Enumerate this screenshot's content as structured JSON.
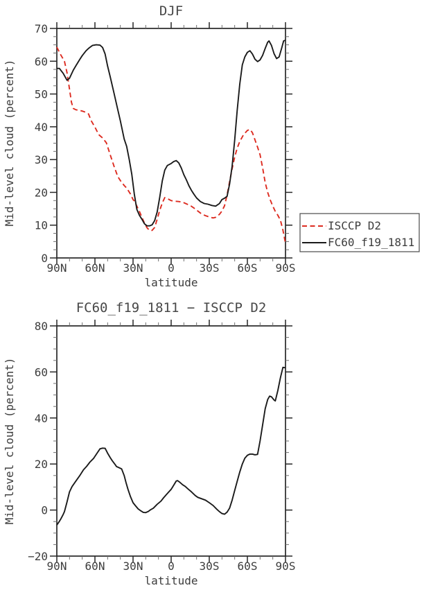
{
  "page": {
    "background": "#ffffff",
    "text_color": "#3d3d3d",
    "frame_color": "#262626"
  },
  "chart_data": [
    {
      "type": "line",
      "title": "DJF",
      "xlabel": "latitude",
      "ylabel": "Mid-level cloud (percent)",
      "ylim": [
        0,
        70
      ],
      "xlim_lat": [
        90,
        -90
      ],
      "grid": false,
      "legend_position": "outside-right",
      "yticks": [
        {
          "v": 0,
          "label": "0"
        },
        {
          "v": 10,
          "label": "10"
        },
        {
          "v": 20,
          "label": "20"
        },
        {
          "v": 30,
          "label": "30"
        },
        {
          "v": 40,
          "label": "40"
        },
        {
          "v": 50,
          "label": "50"
        },
        {
          "v": 60,
          "label": "60"
        },
        {
          "v": 70,
          "label": "70"
        }
      ],
      "yminor_step": 2.5,
      "xticks": [
        {
          "lat": 90,
          "label": "90N"
        },
        {
          "lat": 60,
          "label": "60N"
        },
        {
          "lat": 30,
          "label": "30N"
        },
        {
          "lat": 0,
          "label": "0"
        },
        {
          "lat": -30,
          "label": "30S"
        },
        {
          "lat": -60,
          "label": "60S"
        },
        {
          "lat": -90,
          "label": "90S"
        }
      ],
      "xminor_step": 10,
      "series": [
        {
          "name": "ISCCP D2",
          "color": "#dd2b20",
          "dashed": true,
          "points": [
            [
              90,
              64.3
            ],
            [
              87,
              62
            ],
            [
              84,
              60
            ],
            [
              82,
              56.5
            ],
            [
              80,
              51.5
            ],
            [
              78.5,
              47.5
            ],
            [
              77,
              45.6
            ],
            [
              75,
              45.2
            ],
            [
              72,
              45
            ],
            [
              70,
              44.8
            ],
            [
              67,
              44.4
            ],
            [
              65,
              43.9
            ],
            [
              63,
              41.9
            ],
            [
              60,
              39.9
            ],
            [
              57,
              37.6
            ],
            [
              54,
              36.6
            ],
            [
              51,
              35.1
            ],
            [
              48,
              31.5
            ],
            [
              45,
              28
            ],
            [
              42,
              24.8
            ],
            [
              40,
              23.6
            ],
            [
              37,
              22.1
            ],
            [
              35,
              21.3
            ],
            [
              32,
              19.5
            ],
            [
              30,
              17.8
            ],
            [
              29,
              17.4
            ],
            [
              27,
              15.8
            ],
            [
              25,
              14.2
            ],
            [
              23,
              12.4
            ],
            [
              21,
              10.6
            ],
            [
              19,
              9.2
            ],
            [
              17,
              8.4
            ],
            [
              15,
              8.4
            ],
            [
              13,
              9.3
            ],
            [
              11,
              11.8
            ],
            [
              9,
              14.5
            ],
            [
              7,
              16.8
            ],
            [
              5,
              18.4
            ],
            [
              3,
              18.1
            ],
            [
              0,
              17.5
            ],
            [
              -3,
              17.3
            ],
            [
              -6,
              17.2
            ],
            [
              -9,
              17
            ],
            [
              -12,
              16.5
            ],
            [
              -15,
              16
            ],
            [
              -18,
              15.2
            ],
            [
              -21,
              14.3
            ],
            [
              -24,
              13.4
            ],
            [
              -27,
              12.9
            ],
            [
              -30,
              12.5
            ],
            [
              -33,
              12.2
            ],
            [
              -35,
              12.4
            ],
            [
              -38,
              13.3
            ],
            [
              -40,
              14.3
            ],
            [
              -42,
              15.9
            ],
            [
              -44,
              19.2
            ],
            [
              -46,
              23.2
            ],
            [
              -48,
              27.2
            ],
            [
              -50,
              30.8
            ],
            [
              -52,
              33.5
            ],
            [
              -54,
              35.5
            ],
            [
              -57,
              37.6
            ],
            [
              -60,
              38.9
            ],
            [
              -62,
              39.2
            ],
            [
              -64,
              38.2
            ],
            [
              -66,
              36
            ],
            [
              -68,
              33.8
            ],
            [
              -70,
              31.5
            ],
            [
              -72,
              27.5
            ],
            [
              -74,
              23
            ],
            [
              -76,
              20
            ],
            [
              -78,
              17.7
            ],
            [
              -80,
              15.8
            ],
            [
              -82,
              14.2
            ],
            [
              -84,
              13
            ],
            [
              -86,
              11.5
            ],
            [
              -88,
              8.5
            ],
            [
              -90,
              4.4
            ]
          ]
        },
        {
          "name": "FC60_f19_1811",
          "color": "#1a1a1a",
          "dashed": false,
          "points": [
            [
              90,
              57.8
            ],
            [
              88,
              57.8
            ],
            [
              85,
              56.3
            ],
            [
              82,
              54.2
            ],
            [
              80,
              54.8
            ],
            [
              77,
              57.3
            ],
            [
              75,
              58.6
            ],
            [
              72,
              60.5
            ],
            [
              70,
              61.7
            ],
            [
              67,
              63.2
            ],
            [
              65,
              63.9
            ],
            [
              62,
              64.8
            ],
            [
              59,
              65
            ],
            [
              56,
              64.9
            ],
            [
              54,
              64.2
            ],
            [
              52,
              62.2
            ],
            [
              50,
              58.5
            ],
            [
              48,
              55.3
            ],
            [
              45,
              50.3
            ],
            [
              42,
              45.2
            ],
            [
              40,
              41.8
            ],
            [
              37,
              36.3
            ],
            [
              35,
              34
            ],
            [
              33,
              30
            ],
            [
              31,
              25.5
            ],
            [
              29,
              19.5
            ],
            [
              27,
              14.8
            ],
            [
              25,
              13
            ],
            [
              23,
              11.8
            ],
            [
              21,
              10.4
            ],
            [
              19,
              9.8
            ],
            [
              17,
              9.8
            ],
            [
              15,
              10.1
            ],
            [
              13,
              11.4
            ],
            [
              11,
              14
            ],
            [
              9,
              18.5
            ],
            [
              7,
              23.5
            ],
            [
              5,
              26.8
            ],
            [
              3,
              28.2
            ],
            [
              0,
              28.8
            ],
            [
              -2,
              29.4
            ],
            [
              -4,
              29.7
            ],
            [
              -6,
              29
            ],
            [
              -8,
              27.4
            ],
            [
              -10,
              25.4
            ],
            [
              -12,
              23.8
            ],
            [
              -14,
              22
            ],
            [
              -16,
              20.6
            ],
            [
              -18,
              19.4
            ],
            [
              -20,
              18.3
            ],
            [
              -23,
              17.2
            ],
            [
              -26,
              16.6
            ],
            [
              -29,
              16.4
            ],
            [
              -32,
              16
            ],
            [
              -35,
              15.8
            ],
            [
              -38,
              16.6
            ],
            [
              -40,
              17.8
            ],
            [
              -42,
              18.2
            ],
            [
              -44,
              18.8
            ],
            [
              -46,
              22.5
            ],
            [
              -48,
              28
            ],
            [
              -50,
              36
            ],
            [
              -52,
              45
            ],
            [
              -54,
              53
            ],
            [
              -56,
              58.9
            ],
            [
              -58,
              61.3
            ],
            [
              -60,
              62.7
            ],
            [
              -62,
              63.2
            ],
            [
              -64,
              62.2
            ],
            [
              -66,
              60.6
            ],
            [
              -68,
              59.9
            ],
            [
              -70,
              60.4
            ],
            [
              -72,
              61.8
            ],
            [
              -74,
              63.9
            ],
            [
              -76,
              65.8
            ],
            [
              -77,
              66.2
            ],
            [
              -79,
              64.8
            ],
            [
              -81,
              62.3
            ],
            [
              -83,
              60.8
            ],
            [
              -85,
              61.3
            ],
            [
              -87,
              64
            ],
            [
              -88.5,
              66.2
            ],
            [
              -90,
              66.4
            ]
          ]
        }
      ],
      "legend": {
        "entries": [
          {
            "label": "ISCCP D2"
          },
          {
            "label": "FC60_f19_1811"
          }
        ]
      }
    },
    {
      "type": "line",
      "title": "FC60_f19_1811 − ISCCP D2",
      "xlabel": "latitude",
      "ylabel": "Mid-level cloud (percent)",
      "ylim": [
        -20,
        80
      ],
      "xlim_lat": [
        90,
        -90
      ],
      "grid": false,
      "yticks": [
        {
          "v": -20,
          "label": "−20"
        },
        {
          "v": 0,
          "label": "0"
        },
        {
          "v": 20,
          "label": "20"
        },
        {
          "v": 40,
          "label": "40"
        },
        {
          "v": 60,
          "label": "60"
        },
        {
          "v": 80,
          "label": "80"
        }
      ],
      "yminor_step": 5,
      "xticks": [
        {
          "lat": 90,
          "label": "90N"
        },
        {
          "lat": 60,
          "label": "60N"
        },
        {
          "lat": 30,
          "label": "30N"
        },
        {
          "lat": 0,
          "label": "0"
        },
        {
          "lat": -30,
          "label": "30S"
        },
        {
          "lat": -60,
          "label": "60S"
        },
        {
          "lat": -90,
          "label": "90S"
        }
      ],
      "xminor_step": 10,
      "series": [
        {
          "name": "FC60_f19_1811 minus ISCCP D2",
          "color": "#1a1a1a",
          "dashed": false,
          "points": [
            [
              90,
              -6.5
            ],
            [
              88.5,
              -5.3
            ],
            [
              87,
              -4
            ],
            [
              85,
              -1.9
            ],
            [
              84,
              -0.7
            ],
            [
              82,
              3.5
            ],
            [
              80,
              7.9
            ],
            [
              78,
              10.2
            ],
            [
              75,
              12.6
            ],
            [
              72,
              14.9
            ],
            [
              69,
              17.5
            ],
            [
              66.5,
              19
            ],
            [
              64,
              20.8
            ],
            [
              61,
              22.5
            ],
            [
              58,
              25
            ],
            [
              56,
              26.6
            ],
            [
              54,
              26.9
            ],
            [
              52,
              26.8
            ],
            [
              50,
              24.7
            ],
            [
              48,
              22.8
            ],
            [
              46.5,
              21.5
            ],
            [
              44,
              19.7
            ],
            [
              43,
              18.9
            ],
            [
              41,
              18.4
            ],
            [
              39,
              17.9
            ],
            [
              37,
              15
            ],
            [
              35.5,
              11.9
            ],
            [
              34,
              9
            ],
            [
              32,
              5.8
            ],
            [
              30,
              3.2
            ],
            [
              28,
              1.8
            ],
            [
              26,
              0.5
            ],
            [
              24,
              -0.3
            ],
            [
              22,
              -1
            ],
            [
              20,
              -1.1
            ],
            [
              18,
              -0.6
            ],
            [
              16,
              0.2
            ],
            [
              14,
              0.8
            ],
            [
              11,
              2.5
            ],
            [
              8,
              3.9
            ],
            [
              6,
              5.3
            ],
            [
              4,
              6.6
            ],
            [
              2,
              7.8
            ],
            [
              0,
              9
            ],
            [
              -2,
              10.8
            ],
            [
              -4,
              12.6
            ],
            [
              -5,
              12.8
            ],
            [
              -7,
              12
            ],
            [
              -9,
              11
            ],
            [
              -11,
              10.3
            ],
            [
              -13,
              9.3
            ],
            [
              -16,
              7.9
            ],
            [
              -19,
              6.3
            ],
            [
              -21,
              5.5
            ],
            [
              -24,
              4.9
            ],
            [
              -27,
              4.3
            ],
            [
              -30,
              3.2
            ],
            [
              -33,
              2
            ],
            [
              -36,
              0.3
            ],
            [
              -38,
              -0.7
            ],
            [
              -40,
              -1.5
            ],
            [
              -42,
              -1.8
            ],
            [
              -44,
              -0.9
            ],
            [
              -46,
              0.8
            ],
            [
              -48,
              4.3
            ],
            [
              -50,
              8.5
            ],
            [
              -52,
              12.5
            ],
            [
              -54,
              16.5
            ],
            [
              -56,
              20
            ],
            [
              -58,
              22.5
            ],
            [
              -60,
              23.8
            ],
            [
              -62,
              24.3
            ],
            [
              -64,
              24.3
            ],
            [
              -66,
              24
            ],
            [
              -68,
              24.2
            ],
            [
              -70,
              30
            ],
            [
              -72,
              37
            ],
            [
              -74,
              44
            ],
            [
              -76,
              48
            ],
            [
              -77.5,
              49.5
            ],
            [
              -79,
              49.2
            ],
            [
              -81,
              47.8
            ],
            [
              -82,
              47.4
            ],
            [
              -84,
              52
            ],
            [
              -86,
              57.5
            ],
            [
              -88,
              62
            ],
            [
              -90,
              61.8
            ]
          ]
        }
      ]
    }
  ]
}
